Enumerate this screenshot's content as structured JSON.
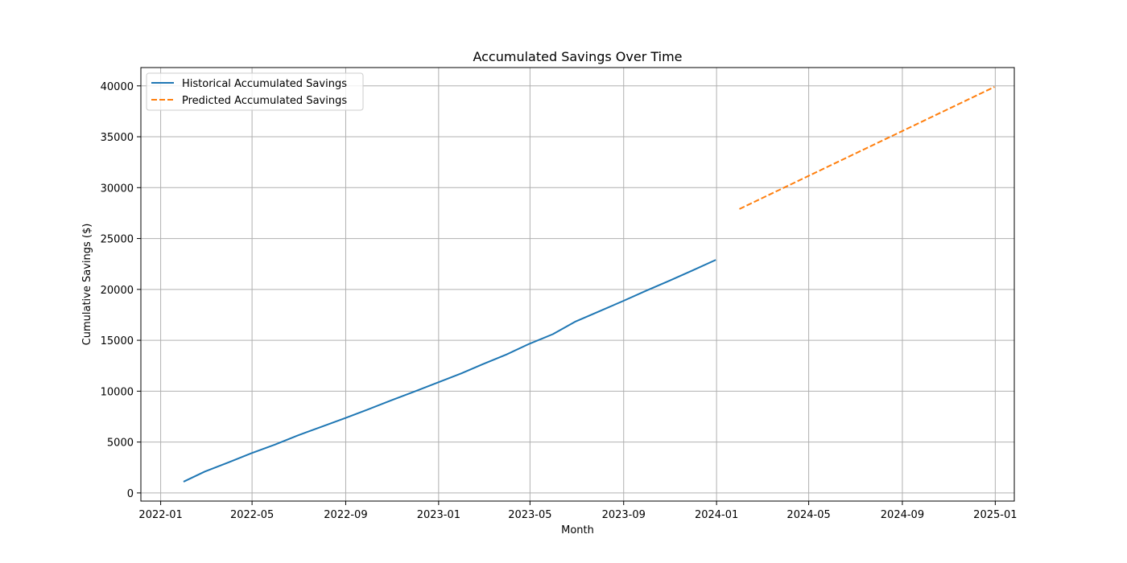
{
  "chart_data": {
    "type": "line",
    "title": "Accumulated Savings Over Time",
    "xlabel": "Month",
    "ylabel": "Cumulative Savings ($)",
    "x_axis_type": "date",
    "xlim": [
      "2021-12-06",
      "2025-01-26"
    ],
    "ylim": [
      -800,
      41800
    ],
    "x_ticks": [
      "2022-01",
      "2022-05",
      "2022-09",
      "2023-01",
      "2023-05",
      "2023-09",
      "2024-01",
      "2024-05",
      "2024-09",
      "2025-01"
    ],
    "y_ticks": [
      0,
      5000,
      10000,
      15000,
      20000,
      25000,
      30000,
      35000,
      40000
    ],
    "grid": true,
    "legend_position": "top-left",
    "series": [
      {
        "name": "Historical Accumulated Savings",
        "color": "#1f77b4",
        "style": "solid",
        "x": [
          "2022-01-31",
          "2022-02-28",
          "2022-03-31",
          "2022-04-30",
          "2022-05-31",
          "2022-06-30",
          "2022-07-31",
          "2022-08-31",
          "2022-09-30",
          "2022-10-31",
          "2022-11-30",
          "2022-12-31",
          "2023-01-31",
          "2023-02-28",
          "2023-03-31",
          "2023-04-30",
          "2023-05-31",
          "2023-06-30",
          "2023-07-31",
          "2023-08-31",
          "2023-09-30",
          "2023-10-31",
          "2023-11-30",
          "2023-12-31"
        ],
        "y": [
          1100,
          2100,
          3000,
          3900,
          4750,
          5650,
          6500,
          7350,
          8200,
          9100,
          9950,
          10850,
          11750,
          12650,
          13600,
          14650,
          15600,
          16850,
          17850,
          18850,
          19850,
          20850,
          21850,
          22900
        ]
      },
      {
        "name": "Predicted Accumulated Savings",
        "color": "#ff7f0e",
        "style": "dashed",
        "x": [
          "2024-01-31",
          "2024-12-31"
        ],
        "y": [
          27900,
          39900
        ]
      }
    ]
  }
}
